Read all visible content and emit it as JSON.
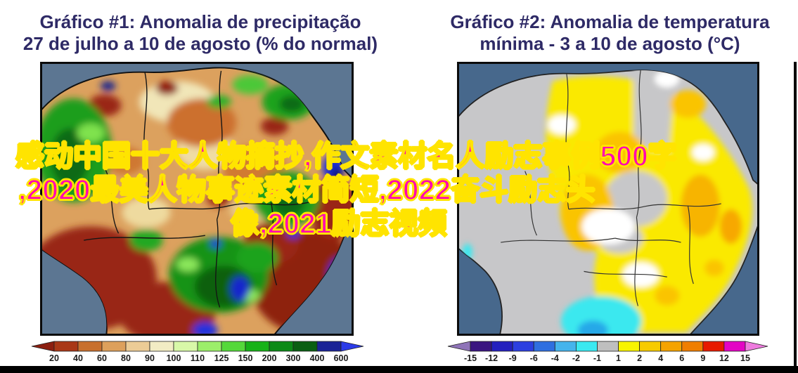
{
  "titles": {
    "color": "#2E2A66",
    "chart1_line1": "Gráfico #1: Anomalia de precipitação",
    "chart1_line2": "27 de julho a 10 de agosto (% do normal)",
    "chart2_line1": "Gráfico #2: Anomalia de temperatura",
    "chart2_line2": "mínima - 3 a 10 de agosto (°C)"
  },
  "overlay": {
    "fill_color": "#FF00B4",
    "outline_color": "#FFE400",
    "lines": [
      "感动中国十大人物摘抄,作文素材名人励志事例500字",
      ",2020最美人物事迹素材简短,2022奋斗励志头",
      "像,2021励志视频"
    ]
  },
  "chart_data": [
    {
      "type": "heatmap",
      "map_of": "South America / Brazil",
      "title": "Gráfico #1: Anomalia de precipitação 27 de julho a 10 de agosto (% do normal)",
      "legend_units": "% do normal",
      "legend_boundaries": [
        "20",
        "40",
        "60",
        "80",
        "90",
        "100",
        "110",
        "125",
        "150",
        "200",
        "300",
        "400",
        "600"
      ],
      "legend_colors": [
        "#A93817",
        "#C8702E",
        "#DDA05C",
        "#ECCC96",
        "#F2ECC4",
        "#D8F8A8",
        "#9CEE6A",
        "#55D83A",
        "#17B217",
        "#0C8A16",
        "#0A5F12",
        "#1A2296"
      ],
      "legend_arrow_left_color": "#8C1F10",
      "legend_arrow_right_color": "#2B3BE8",
      "ocean_color": "#5C7692"
    },
    {
      "type": "heatmap",
      "map_of": "South America / Brazil",
      "title": "Gráfico #2: Anomalia de temperatura mínima - 3 a 10 de agosto (°C)",
      "legend_units": "°C",
      "legend_boundaries": [
        "-15",
        "-12",
        "-9",
        "-6",
        "-4",
        "-2",
        "-1",
        "1",
        "2",
        "4",
        "6",
        "9",
        "12",
        "15"
      ],
      "legend_colors": [
        "#3A1580",
        "#2420BE",
        "#2C3FE0",
        "#2F6FE0",
        "#45B4EC",
        "#3BE9F1",
        "#BFBFBF",
        "#F8F400",
        "#F7CB00",
        "#F5A300",
        "#F07E00",
        "#E71A00",
        "#E304C4"
      ],
      "legend_arrow_left_color": "#8F74B8",
      "legend_arrow_right_color": "#EE7BDE",
      "ocean_color": "#47688C",
      "no_data_land_color": "#C7C7C9"
    }
  ]
}
